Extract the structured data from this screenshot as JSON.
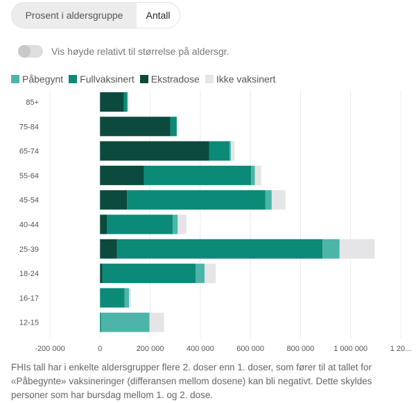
{
  "toggle_group": {
    "options": [
      "Prosent i aldersgruppe",
      "Antall"
    ],
    "selected": "Antall"
  },
  "toggle": {
    "label": "Vis høyde relativt til størrelse på aldersgr.",
    "on": false
  },
  "legend": {
    "items": [
      {
        "label": "Påbegynt",
        "color": "#4cb5a8"
      },
      {
        "label": "Fullvaksinert",
        "color": "#0b8a78"
      },
      {
        "label": "Ekstradose",
        "color": "#0c4a3e"
      },
      {
        "label": "Ikke vaksinert",
        "color": "#e5e5e8"
      }
    ]
  },
  "chart_data": {
    "type": "bar",
    "orientation": "horizontal",
    "stacked": true,
    "categories": [
      "85+",
      "75-84",
      "65-74",
      "55-64",
      "45-54",
      "40-44",
      "25-39",
      "18-24",
      "16-17",
      "12-15"
    ],
    "series": [
      {
        "name": "Ekstradose",
        "color": "#0c4a3e",
        "values": [
          95000,
          280000,
          435000,
          175000,
          108000,
          28000,
          68000,
          9000,
          0,
          0
        ]
      },
      {
        "name": "Fullvaksinert",
        "color": "#0b8a78",
        "values": [
          13000,
          25000,
          82000,
          428000,
          552000,
          262000,
          820000,
          372000,
          98000,
          5000
        ]
      },
      {
        "name": "Påbegynt",
        "color": "#4cb5a8",
        "values": [
          3000,
          2000,
          5000,
          15000,
          25000,
          20000,
          68000,
          36000,
          18000,
          192000
        ]
      },
      {
        "name": "Ikke vaksinert",
        "color": "#e5e5e8",
        "values": [
          2000,
          0,
          15000,
          25000,
          55000,
          35000,
          140000,
          45000,
          8000,
          58000
        ]
      }
    ],
    "xlim": [
      -200000,
      1200000
    ],
    "x_ticks": [
      -200000,
      0,
      200000,
      400000,
      600000,
      800000,
      1000000,
      1200000
    ],
    "x_tick_labels": [
      "-200 000",
      "0",
      "200 000",
      "400 000",
      "600 000",
      "800 000",
      "1 000 000",
      "1 20..."
    ],
    "grid": true,
    "legend_position": "top-left"
  },
  "footnote": "FHIs tall har i enkelte aldersgrupper flere 2. doser enn 1. doser, som fører til at tallet for «Påbegynte» vaksineringer (differansen mellom dosene) kan bli negativt. Dette skyldes personer som har bursdag mellom 1. og 2. dose."
}
